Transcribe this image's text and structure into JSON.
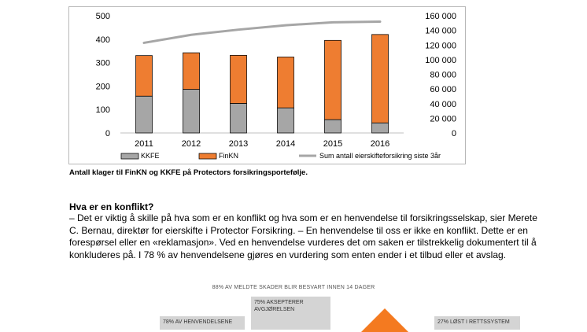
{
  "chart_data": {
    "type": "bar",
    "categories": [
      "2011",
      "2012",
      "2013",
      "2014",
      "2015",
      "2016"
    ],
    "series": [
      {
        "name": "KKFE",
        "values": [
          157,
          186,
          126,
          107,
          57,
          43
        ],
        "color": "#a6a6a6",
        "axis": "left"
      },
      {
        "name": "FinKN",
        "values": [
          173,
          156,
          205,
          217,
          338,
          377
        ],
        "color": "#ee7d31",
        "axis": "left"
      },
      {
        "name": "Sum antall eierskifteforsikring siste 3år",
        "values": [
          123000,
          134000,
          141000,
          147000,
          151000,
          152000
        ],
        "color": "#a6a6a6",
        "type": "line",
        "axis": "right"
      }
    ],
    "stacked": true,
    "ylim": [
      0,
      500
    ],
    "yticks": [
      "0",
      "100",
      "200",
      "300",
      "400",
      "500"
    ],
    "y2lim": [
      0,
      160000
    ],
    "y2ticks": [
      "0",
      "20 000",
      "40 000",
      "60 000",
      "80 000",
      "100 000",
      "120 000",
      "140 000",
      "160 000"
    ],
    "legend": [
      "KKFE",
      "FinKN",
      "Sum antall eierskifteforsikring siste 3år"
    ],
    "legend_position": "bottom"
  },
  "caption": "Antall klager til FinKN og KKFE på Protectors forsikringsportefølje.",
  "section_heading": "Hva er en konflikt?",
  "body_text": "– Det er viktig å skille på hva som er en konflikt og hva som er en henvendelse til forsikringsselskap, sier Merete C. Bernau, direktør for eierskifte i Protector Forsikring. – En henvendelse til oss er ikke en konflikt. Dette er en forespørsel eller en «reklamasjon». Ved en henvendelse vurderes det om saken er tilstrekkelig dokumentert til å konkluderes på. I 78 % av henvendelsene gjøres en vurdering som enten ender i et tilbud eller et avslag.",
  "infographic": {
    "title": "88% AV MELDTE SKADER BLIR BESVART INNEN 14 DAGER",
    "box_left": "78% AV HENVENDELSENE",
    "box_mid": "75% AKSEPTERER AVGJØRELSEN",
    "box_right": "27% LØST I RETTSSYSTEM",
    "accent": "#f47a20"
  }
}
